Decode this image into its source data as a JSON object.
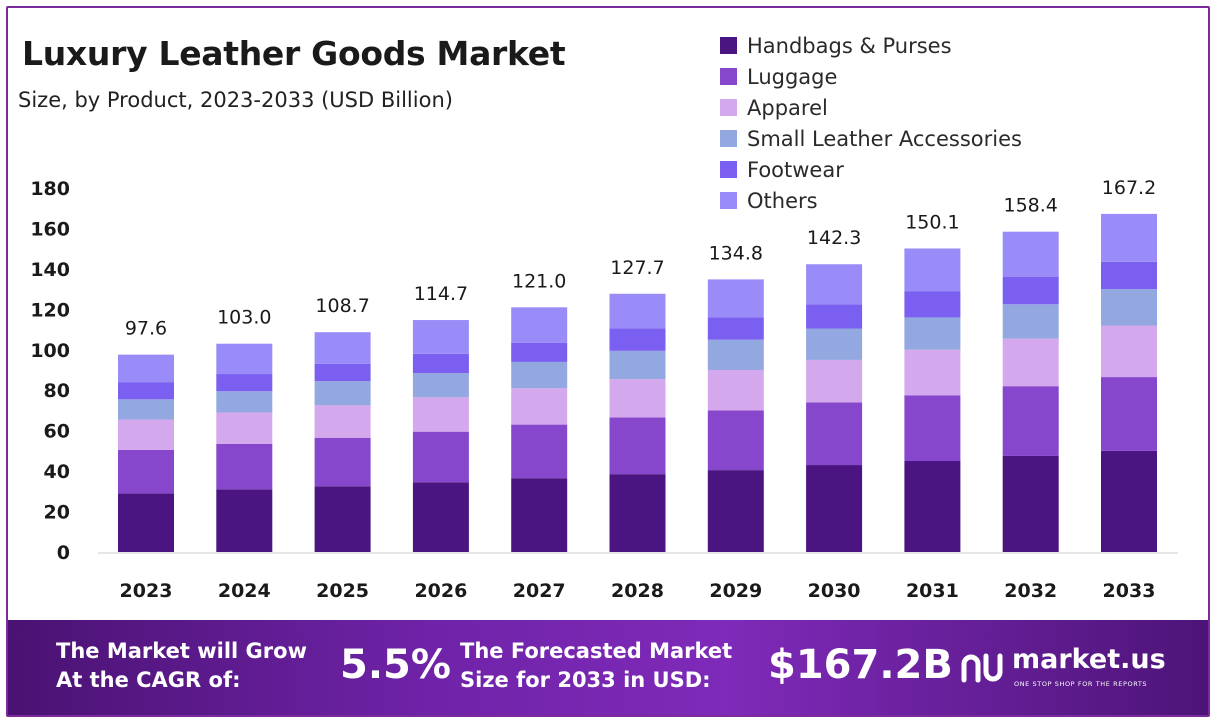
{
  "chart_data": {
    "type": "bar",
    "stacked": true,
    "title": "Luxury Leather Goods Market",
    "subtitle": "Size, by Product, 2023-2033 (USD Billion)",
    "xlabel": "",
    "ylabel": "",
    "ylim": [
      0,
      180
    ],
    "yticks": [
      0,
      20,
      40,
      60,
      80,
      100,
      120,
      140,
      160,
      180
    ],
    "grid": false,
    "legend_position": "top-right",
    "categories": [
      "2023",
      "2024",
      "2025",
      "2026",
      "2027",
      "2028",
      "2029",
      "2030",
      "2031",
      "2032",
      "2033"
    ],
    "totals": [
      97.6,
      103.0,
      108.7,
      114.7,
      121.0,
      127.7,
      134.8,
      142.3,
      150.1,
      158.4,
      167.2
    ],
    "total_labels": [
      "97.6",
      "103.0",
      "108.7",
      "114.7",
      "121.0",
      "127.7",
      "134.8",
      "142.3",
      "150.1",
      "158.4",
      "167.2"
    ],
    "series": [
      {
        "name": "Handbags & Purses",
        "color": "#4a1580",
        "values": [
          29.0,
          31.0,
          32.5,
          34.5,
          36.5,
          38.5,
          40.5,
          43.0,
          45.0,
          47.5,
          50.0
        ]
      },
      {
        "name": "Luggage",
        "color": "#8747cc",
        "values": [
          21.5,
          22.5,
          24.0,
          25.0,
          26.5,
          28.0,
          29.5,
          31.0,
          32.5,
          34.5,
          36.5
        ]
      },
      {
        "name": "Apparel",
        "color": "#d4a8ec",
        "values": [
          15.0,
          15.5,
          16.0,
          17.0,
          18.0,
          19.0,
          20.0,
          21.0,
          22.5,
          23.5,
          25.5
        ]
      },
      {
        "name": "Small Leather Accessories",
        "color": "#93a7e0",
        "values": [
          10.0,
          10.5,
          12.0,
          12.0,
          13.0,
          14.0,
          15.0,
          15.5,
          16.0,
          17.0,
          18.0
        ]
      },
      {
        "name": "Footwear",
        "color": "#7a5ff0",
        "values": [
          8.5,
          8.5,
          8.5,
          9.5,
          9.5,
          11.0,
          11.0,
          12.0,
          13.0,
          13.5,
          13.5
        ]
      },
      {
        "name": "Others",
        "color": "#9a8cf8",
        "values": [
          13.6,
          15.0,
          15.7,
          16.7,
          17.5,
          17.2,
          18.8,
          19.8,
          21.1,
          22.4,
          23.7
        ]
      }
    ]
  },
  "footer": {
    "cagr_label_line1": "The Market will Grow",
    "cagr_label_line2": "At the CAGR of:",
    "cagr_value": "5.5%",
    "forecast_label_line1": "The Forecasted Market",
    "forecast_label_line2": "Size for 2033 in USD:",
    "forecast_value": "$167.2B",
    "logo_name": "market.us",
    "logo_tagline": "ONE STOP SHOP FOR THE REPORTS"
  }
}
